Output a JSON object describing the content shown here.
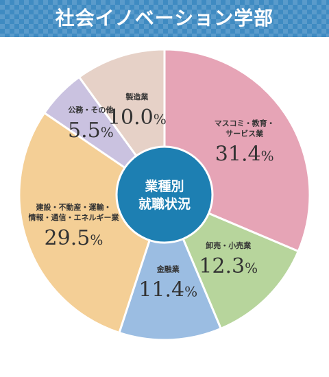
{
  "header": {
    "title": "社会イノベーション学部"
  },
  "chart_data": {
    "type": "pie",
    "title": "",
    "center_label": [
      "業種別",
      "就職状況"
    ],
    "start": "12 o'clock",
    "direction": "clockwise",
    "slices": [
      {
        "label": [
          "マスコミ・教育・",
          "サービス業"
        ],
        "value": 31.4,
        "number": "31.4",
        "unit": "%",
        "color": "#e6a4b6"
      },
      {
        "label": [
          "卸売・小売業"
        ],
        "value": 12.3,
        "number": "12.3",
        "unit": "%",
        "color": "#b7d59c"
      },
      {
        "label": [
          "金融業"
        ],
        "value": 11.4,
        "number": "11.4",
        "unit": "%",
        "color": "#9bbde2"
      },
      {
        "label": [
          "建設・不動産・運輸・",
          "情報・通信・エネルギー業"
        ],
        "value": 29.5,
        "number": "29.5",
        "unit": "%",
        "color": "#f4cf96"
      },
      {
        "label": [
          "公務・その他"
        ],
        "value": 5.5,
        "number": "5.5",
        "unit": "%",
        "color": "#cac2e0"
      },
      {
        "label": [
          "製造業"
        ],
        "value": 10.0,
        "number": "10.0",
        "unit": "%",
        "color": "#e6d1c7"
      }
    ],
    "center_color": "#1d7fb2"
  }
}
